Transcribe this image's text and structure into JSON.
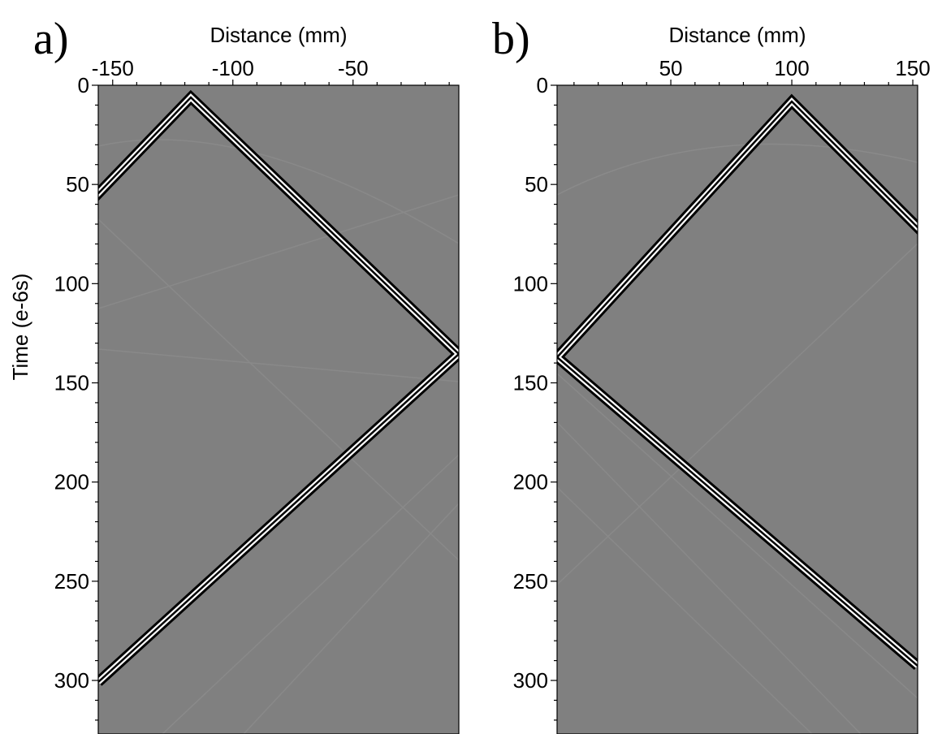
{
  "chart_data": [
    {
      "type": "image",
      "label": "a)",
      "xlabel": "Distance (mm)",
      "ylabel": "Time (e-6s)",
      "xlim": [
        -156,
        -6
      ],
      "ylim": [
        0,
        327
      ],
      "y_inverted": true,
      "xticks": [
        -150,
        -100,
        -50
      ],
      "yticks": [
        0,
        50,
        100,
        150,
        200,
        250,
        300
      ],
      "xticks_minor": [
        -140,
        -130,
        -120,
        -110,
        -90,
        -80,
        -70,
        -60,
        -40,
        -30,
        -20,
        -10
      ],
      "yticks_minor": [
        10,
        20,
        30,
        40,
        60,
        70,
        80,
        90,
        110,
        120,
        130,
        140,
        160,
        170,
        180,
        190,
        210,
        220,
        230,
        240,
        260,
        270,
        280,
        290,
        310,
        320
      ]
    },
    {
      "type": "image",
      "label": "b)",
      "xlabel": "Distance (mm)",
      "xlim": [
        3,
        152
      ],
      "ylim": [
        0,
        327
      ],
      "y_inverted": true,
      "xticks": [
        50,
        100,
        150
      ],
      "yticks": [
        0,
        50,
        100,
        150,
        200,
        250,
        300
      ],
      "xticks_minor": [
        10,
        20,
        30,
        40,
        60,
        70,
        80,
        90,
        110,
        120,
        130,
        140
      ],
      "yticks_minor": [
        10,
        20,
        30,
        40,
        60,
        70,
        80,
        90,
        110,
        120,
        130,
        140,
        160,
        170,
        180,
        190,
        210,
        220,
        230,
        240,
        260,
        270,
        280,
        290,
        310,
        320
      ]
    }
  ]
}
